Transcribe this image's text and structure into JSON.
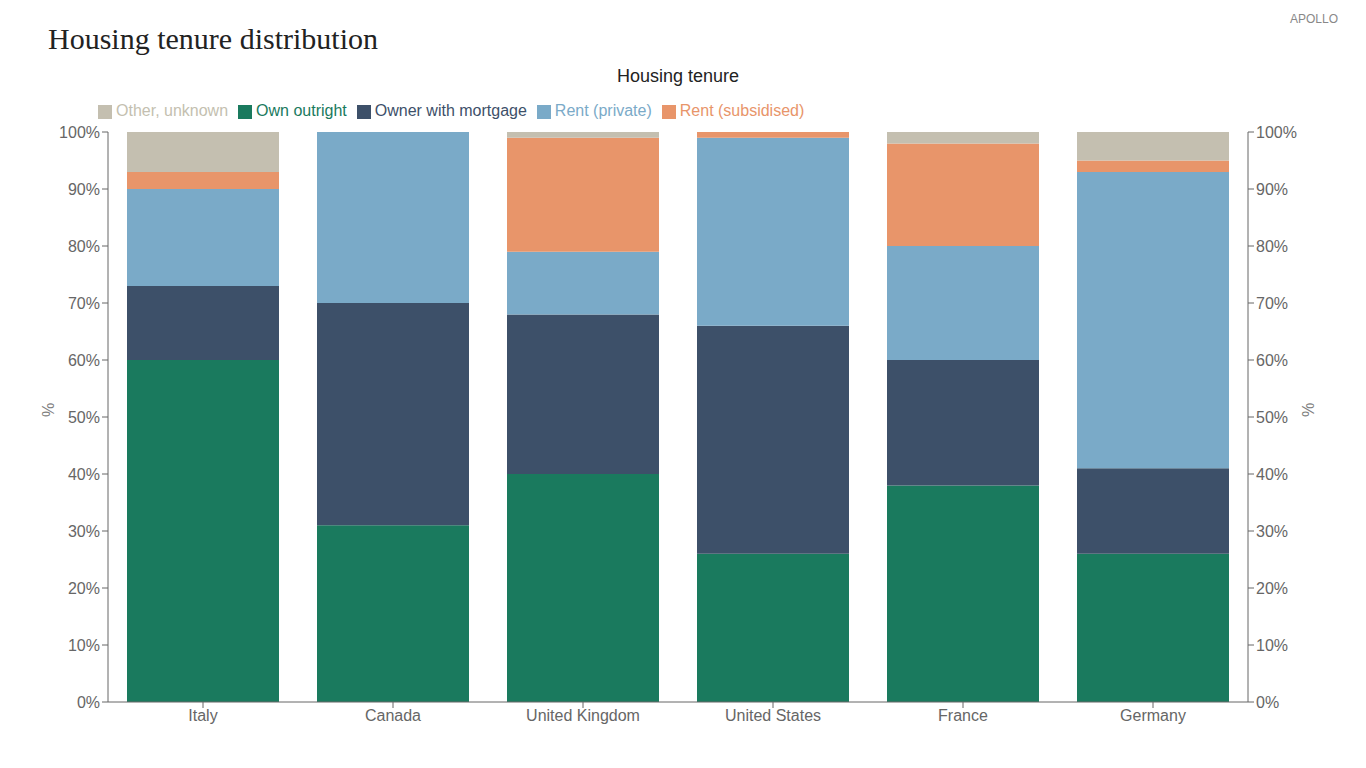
{
  "chart_data": {
    "type": "bar",
    "title": "Housing tenure distribution",
    "subtitle": "Housing tenure",
    "ylabel": "%",
    "y2label": "%",
    "annotations": [
      "APOLLO"
    ],
    "categories": [
      "Italy",
      "Canada",
      "United Kingdom",
      "United States",
      "France",
      "Germany"
    ],
    "series": [
      {
        "name": "Own outright",
        "color": "#1a7a5e",
        "values": [
          60,
          31,
          40,
          26,
          38,
          26
        ]
      },
      {
        "name": "Owner with mortgage",
        "color": "#3d5069",
        "values": [
          13,
          39,
          28,
          40,
          22,
          15
        ]
      },
      {
        "name": "Rent (private)",
        "color": "#7aaac8",
        "values": [
          17,
          30,
          11,
          33,
          20,
          52
        ]
      },
      {
        "name": "Rent (subsidised)",
        "color": "#e8956a",
        "values": [
          3,
          0,
          20,
          1,
          18,
          2
        ]
      },
      {
        "name": "Other, unknown",
        "color": "#c4bfb0",
        "values": [
          7,
          0,
          1,
          0,
          2,
          5
        ]
      }
    ],
    "stacked": true,
    "ylim": [
      0,
      100
    ],
    "yticks": [
      {
        "value": 0,
        "label": "0%"
      },
      {
        "value": 10,
        "label": "10%"
      },
      {
        "value": 20,
        "label": "20%"
      },
      {
        "value": 30,
        "label": "30%"
      },
      {
        "value": 40,
        "label": "40%"
      },
      {
        "value": 50,
        "label": "50%"
      },
      {
        "value": 60,
        "label": "60%"
      },
      {
        "value": 70,
        "label": "70%"
      },
      {
        "value": 80,
        "label": "80%"
      },
      {
        "value": 90,
        "label": "90%"
      },
      {
        "value": 100,
        "label": "100%"
      }
    ],
    "y2lim": [
      0,
      100
    ],
    "y2ticks": [
      {
        "value": 0,
        "label": "0%"
      },
      {
        "value": 10,
        "label": "10%"
      },
      {
        "value": 20,
        "label": "20%"
      },
      {
        "value": 30,
        "label": "30%"
      },
      {
        "value": 40,
        "label": "40%"
      },
      {
        "value": 50,
        "label": "50%"
      },
      {
        "value": 60,
        "label": "60%"
      },
      {
        "value": 70,
        "label": "70%"
      },
      {
        "value": 80,
        "label": "80%"
      },
      {
        "value": 90,
        "label": "90%"
      },
      {
        "value": 100,
        "label": "100%"
      }
    ],
    "grid": false,
    "legend": "upper left"
  }
}
